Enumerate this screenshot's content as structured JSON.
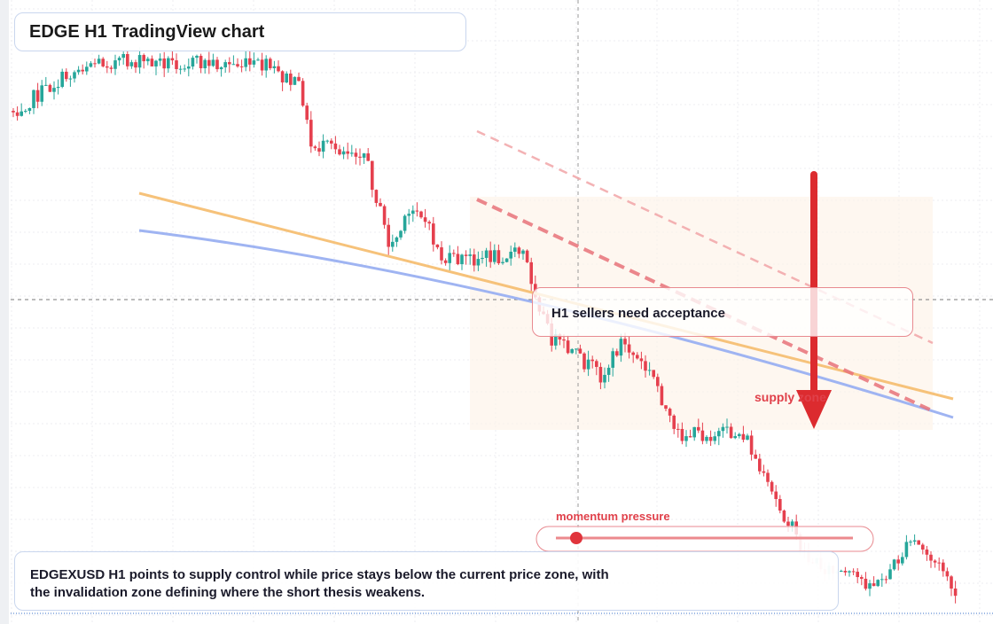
{
  "header": {
    "title": "EDGE H1 TradingView chart"
  },
  "annotations": {
    "callout": "H1 sellers need acceptance",
    "zone": "supply zone",
    "indicator": "momentum pressure"
  },
  "caption": "EDGEXUSD H1 points to supply control while price stays below the current price zone, with the invalidation zone defining where the short thesis weakens."
}
